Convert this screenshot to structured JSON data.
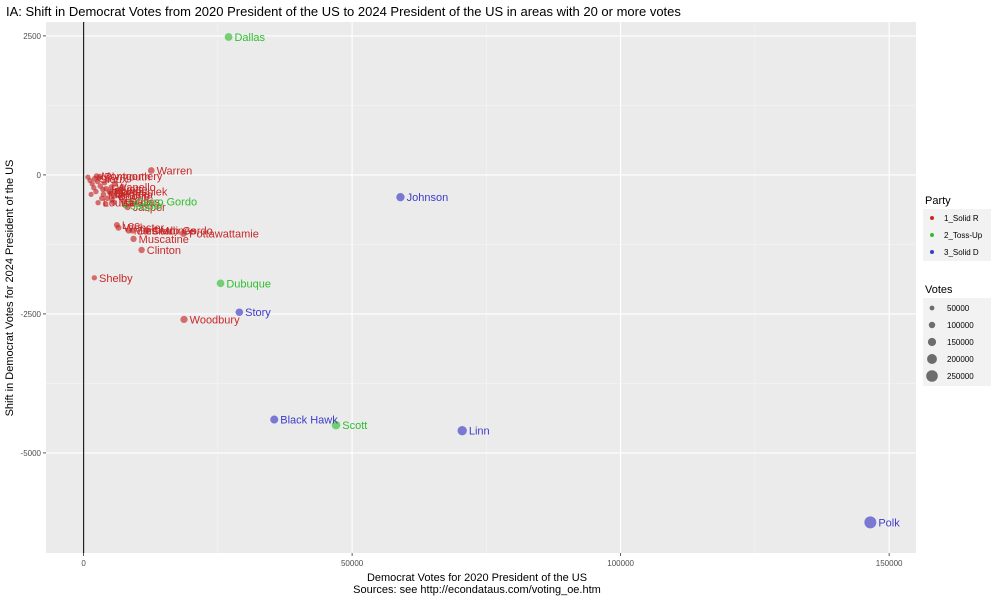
{
  "chart_data": {
    "type": "scatter",
    "title": "IA: Shift in Democrat Votes from 2020 President of the US to 2024 President of the US in areas with 20 or more votes",
    "xlabel": "Democrat Votes for 2020 President of the US",
    "ylabel": "Shift in Democrat Votes for 2024 President of the US",
    "caption": "Sources: see http://econdataus.com/voting_oe.htm",
    "xlim": [
      -7000,
      155000
    ],
    "ylim": [
      -6800,
      2750
    ],
    "x_ticks": [
      0,
      50000,
      100000,
      150000
    ],
    "y_ticks": [
      2500,
      0,
      -2500,
      -5000
    ],
    "grid": true,
    "party_legend": {
      "title": "Party",
      "entries": [
        {
          "label": "1_Solid R",
          "color": "#c82828"
        },
        {
          "label": "2_Toss-Up",
          "color": "#2fbe2f"
        },
        {
          "label": "3_Solid D",
          "color": "#3c3cc8"
        }
      ]
    },
    "votes_legend": {
      "title": "Votes",
      "entries": [
        50000,
        100000,
        150000,
        200000,
        250000
      ]
    },
    "series": [
      {
        "name": "1_Solid R",
        "color": "#c82828",
        "points": [
          {
            "label": "Warren",
            "x": 12600,
            "y": 80,
            "votes": 30000
          },
          {
            "label": "Shelby",
            "x": 2000,
            "y": -1850,
            "votes": 8000
          },
          {
            "label": "Woodbury",
            "x": 18700,
            "y": -2600,
            "votes": 45000
          },
          {
            "label": "Clinton",
            "x": 10800,
            "y": -1350,
            "votes": 25000
          },
          {
            "label": "Pottawattamie",
            "x": 18600,
            "y": -1050,
            "votes": 45000
          },
          {
            "label": "Muscatine",
            "x": 9300,
            "y": -1150,
            "votes": 22000
          },
          {
            "label": "Des Moines",
            "x": 9100,
            "y": -1000,
            "votes": 20000
          },
          {
            "label": "Cerro Gordo",
            "x": 11700,
            "y": -1000,
            "votes": 25000
          },
          {
            "label": "Marshall",
            "x": 8400,
            "y": -1000,
            "votes": 20000
          },
          {
            "label": "Jasper",
            "x": 8200,
            "y": -580,
            "votes": 20000
          },
          {
            "label": "Dallas",
            "x": 7600,
            "y": -480,
            "votes": 18000
          },
          {
            "label": "Webster",
            "x": 6500,
            "y": -950,
            "votes": 18000
          },
          {
            "label": "Lee",
            "x": 6200,
            "y": -900,
            "votes": 17000
          },
          {
            "label": "Marion",
            "x": 5600,
            "y": -500,
            "votes": 16000
          },
          {
            "label": "Boone",
            "x": 5500,
            "y": -380,
            "votes": 15000
          },
          {
            "label": "Linn",
            "x": 5900,
            "y": -300,
            "votes": 15000
          },
          {
            "label": "Benton",
            "x": 5000,
            "y": -330,
            "votes": 14000
          },
          {
            "label": "Wapello",
            "x": 5200,
            "y": -220,
            "votes": 14000
          },
          {
            "label": "Fayette",
            "x": 4200,
            "y": -250,
            "votes": 12000
          },
          {
            "label": "Sioux",
            "x": 2100,
            "y": -70,
            "votes": 15000
          },
          {
            "label": "Plymouth",
            "x": 3000,
            "y": -30,
            "votes": 12000
          },
          {
            "label": "Montgomery",
            "x": 2400,
            "y": -20,
            "votes": 10000
          },
          {
            "label": "Poweshiek",
            "x": 4800,
            "y": -300,
            "votes": 12000
          },
          {
            "label": "Mahaska",
            "x": 3700,
            "y": -350,
            "votes": 10000
          },
          {
            "label": "Louisa",
            "x": 2700,
            "y": -500,
            "votes": 8000
          },
          {
            "label": "",
            "x": 800,
            "y": -40,
            "votes": 6000
          },
          {
            "label": "",
            "x": 1200,
            "y": -100,
            "votes": 7000
          },
          {
            "label": "",
            "x": 1600,
            "y": -160,
            "votes": 7000
          },
          {
            "label": "",
            "x": 1900,
            "y": -230,
            "votes": 8000
          },
          {
            "label": "",
            "x": 2300,
            "y": -300,
            "votes": 8000
          },
          {
            "label": "",
            "x": 2600,
            "y": -120,
            "votes": 9000
          },
          {
            "label": "",
            "x": 3100,
            "y": -200,
            "votes": 9000
          },
          {
            "label": "",
            "x": 3400,
            "y": -420,
            "votes": 10000
          },
          {
            "label": "",
            "x": 3900,
            "y": -140,
            "votes": 10000
          },
          {
            "label": "",
            "x": 4400,
            "y": -420,
            "votes": 11000
          },
          {
            "label": "",
            "x": 4600,
            "y": -80,
            "votes": 11000
          },
          {
            "label": "",
            "x": 5300,
            "y": -450,
            "votes": 12000
          },
          {
            "label": "",
            "x": 5800,
            "y": -150,
            "votes": 13000
          },
          {
            "label": "",
            "x": 6300,
            "y": -280,
            "votes": 14000
          },
          {
            "label": "",
            "x": 6800,
            "y": -380,
            "votes": 15000
          },
          {
            "label": "",
            "x": 7200,
            "y": -220,
            "votes": 16000
          },
          {
            "label": "",
            "x": 1400,
            "y": -350,
            "votes": 6000
          },
          {
            "label": "",
            "x": 2900,
            "y": -60,
            "votes": 9000
          },
          {
            "label": "",
            "x": 3600,
            "y": -260,
            "votes": 10000
          },
          {
            "label": "",
            "x": 4100,
            "y": -520,
            "votes": 11000
          }
        ]
      },
      {
        "name": "2_Toss-Up",
        "color": "#2fbe2f",
        "points": [
          {
            "label": "Dallas",
            "x": 27000,
            "y": 2480,
            "votes": 60000
          },
          {
            "label": "Dubuque",
            "x": 25500,
            "y": -1950,
            "votes": 55000
          },
          {
            "label": "Scott",
            "x": 47000,
            "y": -4500,
            "votes": 90000
          },
          {
            "label": "Jasper",
            "x": 7800,
            "y": -550,
            "votes": 18000
          },
          {
            "label": "Cerro Gordo",
            "x": 8800,
            "y": -480,
            "votes": 20000
          }
        ]
      },
      {
        "name": "3_Solid D",
        "color": "#3c3cc8",
        "points": [
          {
            "label": "Johnson",
            "x": 59000,
            "y": -400,
            "votes": 80000
          },
          {
            "label": "Story",
            "x": 29000,
            "y": -2470,
            "votes": 55000
          },
          {
            "label": "Black Hawk",
            "x": 35500,
            "y": -4400,
            "votes": 70000
          },
          {
            "label": "Linn",
            "x": 70500,
            "y": -4600,
            "votes": 120000
          },
          {
            "label": "Polk",
            "x": 146500,
            "y": -6250,
            "votes": 270000
          }
        ]
      }
    ]
  }
}
